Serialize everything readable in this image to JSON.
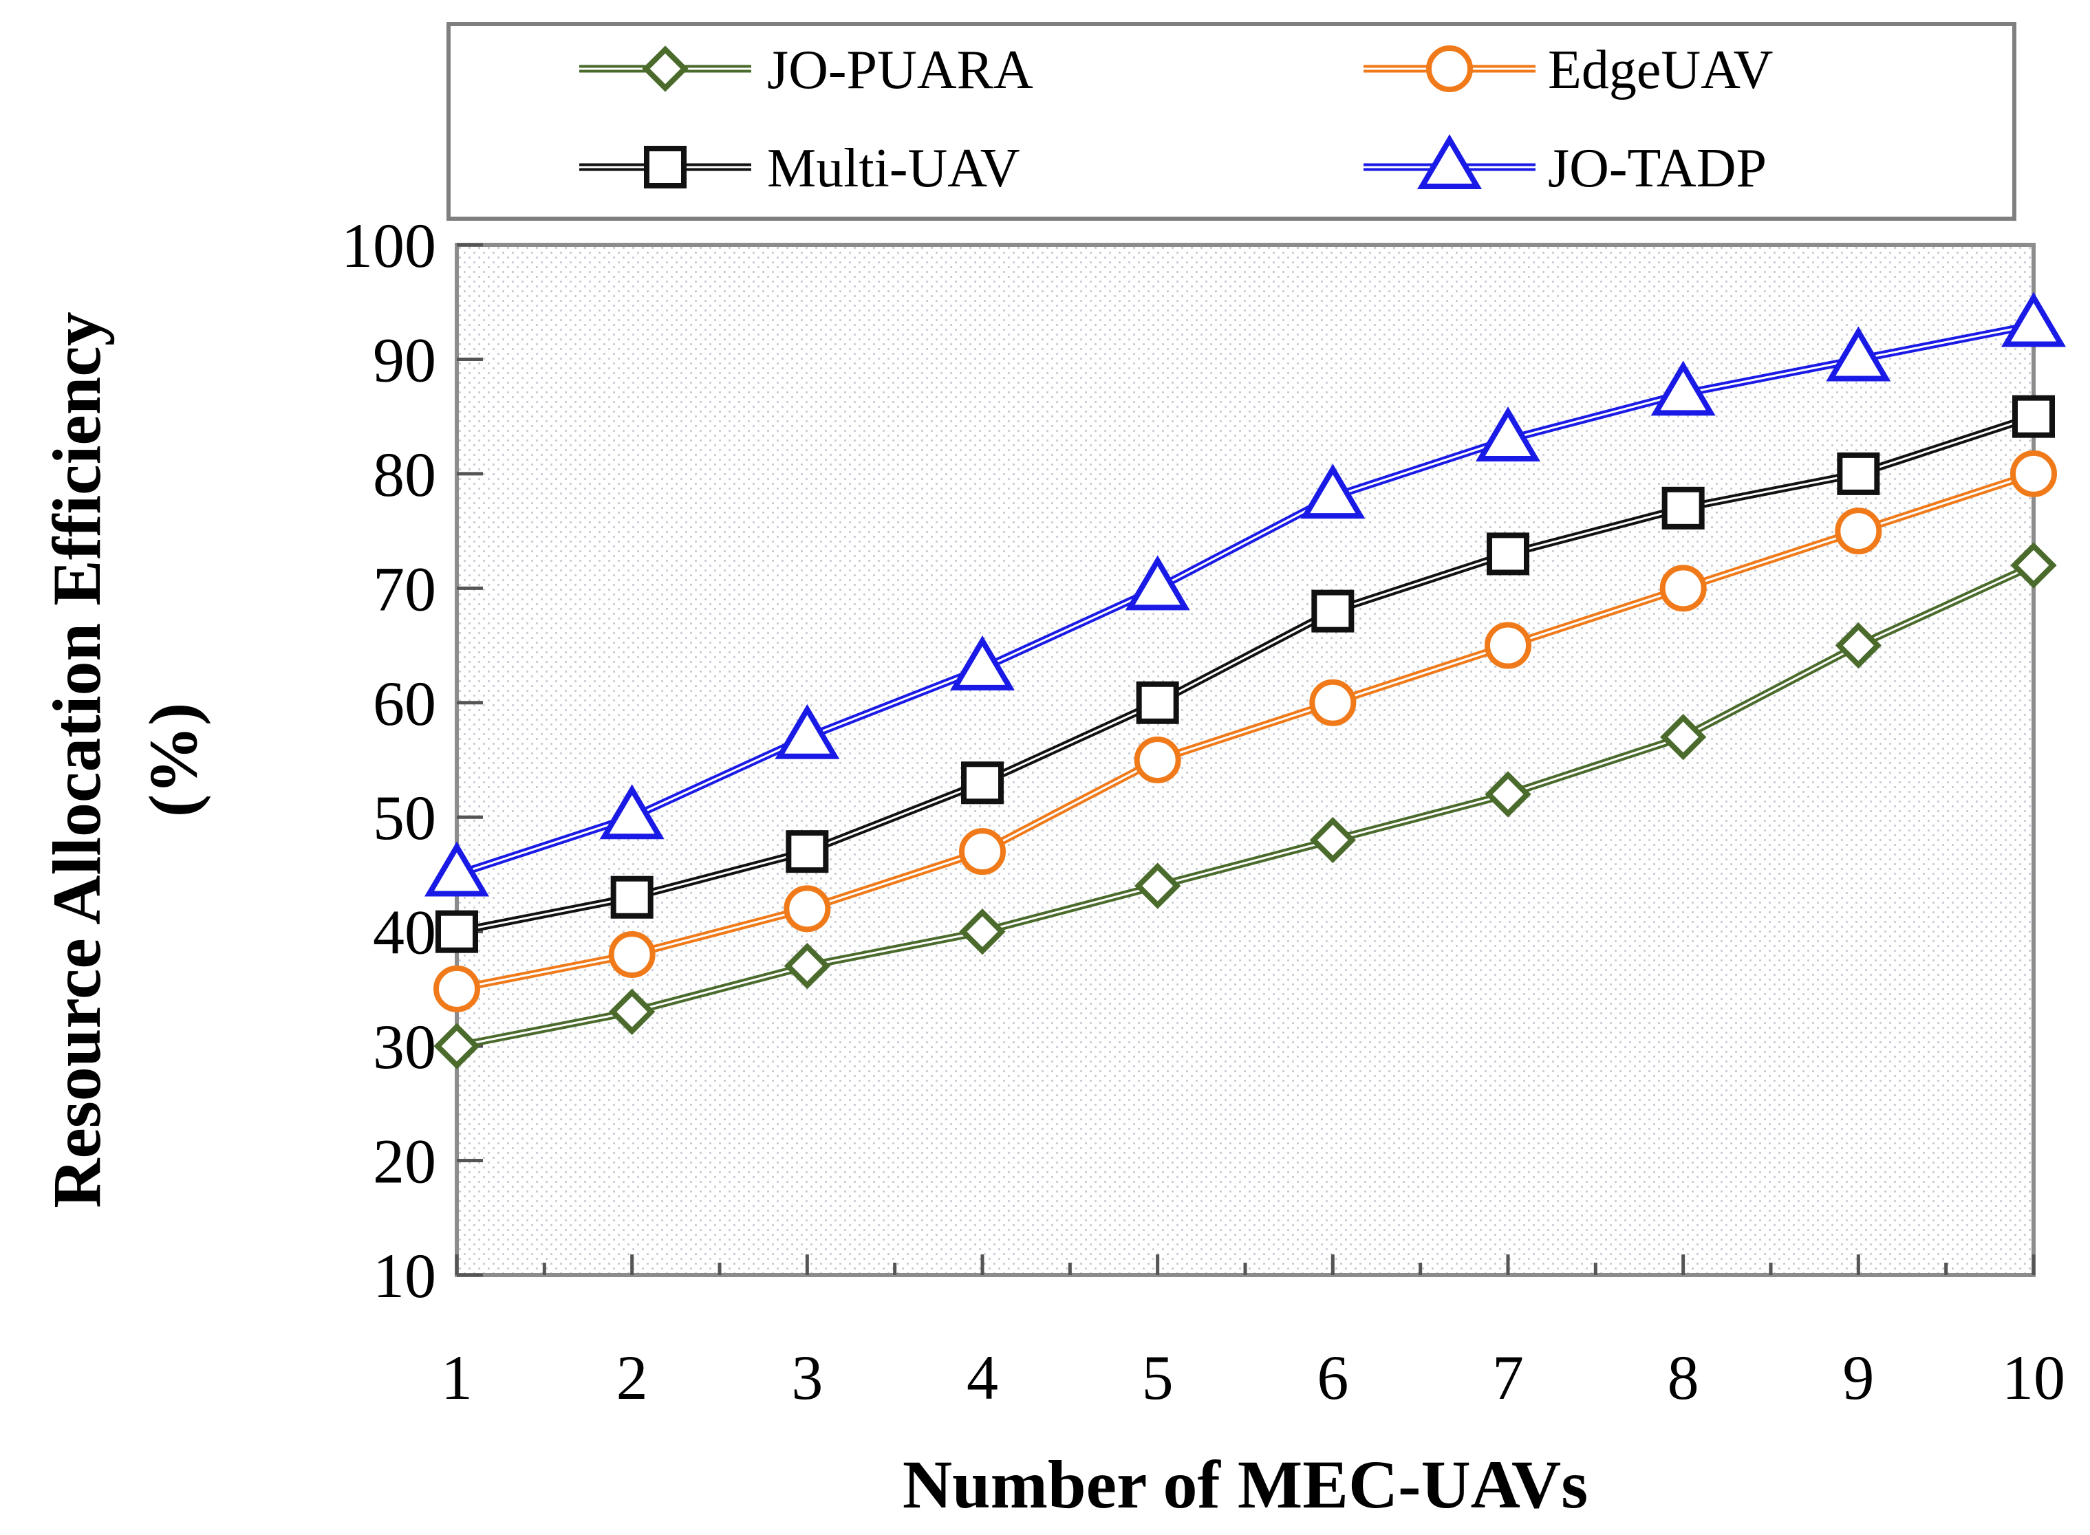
{
  "chart_data": {
    "type": "line",
    "title": "",
    "xlabel": "Number of MEC-UAVs",
    "ylabel": "Resource Allocation Efficiency",
    "ylabel_unit": "(%)",
    "x": [
      1,
      2,
      3,
      4,
      5,
      6,
      7,
      8,
      9,
      10
    ],
    "xlim": [
      1,
      10
    ],
    "ylim": [
      10,
      100
    ],
    "yticks": [
      10,
      20,
      30,
      40,
      50,
      60,
      70,
      80,
      90,
      100
    ],
    "grid": false,
    "legend_position": "top",
    "series": [
      {
        "name": "JO-PUARA",
        "marker": "diamond",
        "color": "#4a6b2c",
        "values": [
          30,
          33,
          37,
          40,
          44,
          48,
          52,
          57,
          65,
          72
        ]
      },
      {
        "name": "EdgeUAV",
        "marker": "circle",
        "color": "#f07a1a",
        "values": [
          35,
          38,
          42,
          47,
          55,
          60,
          65,
          70,
          75,
          80
        ]
      },
      {
        "name": "Multi-UAV",
        "marker": "square",
        "color": "#111111",
        "values": [
          40,
          43,
          47,
          53,
          60,
          68,
          73,
          77,
          80,
          85
        ]
      },
      {
        "name": "JO-TADP",
        "marker": "triangle",
        "color": "#1a1ae6",
        "values": [
          45,
          50,
          57,
          63,
          70,
          78,
          83,
          87,
          90,
          93
        ]
      }
    ]
  }
}
